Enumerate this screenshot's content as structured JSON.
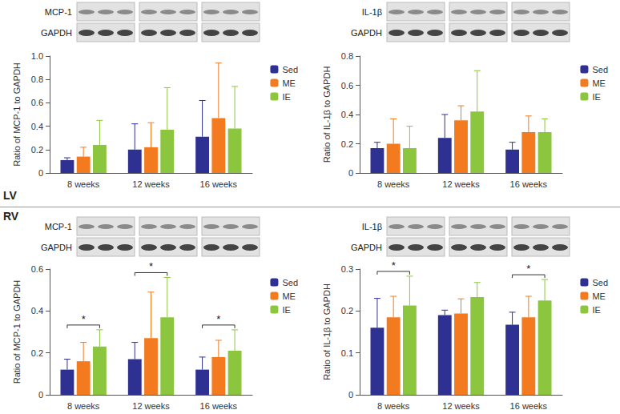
{
  "row_labels": [
    "LV",
    "RV"
  ],
  "chart_data": [
    {
      "type": "bar",
      "blot_labels": [
        "MCP-1",
        "GAPDH"
      ],
      "y_label": "Ratio of MCP-1 to GAPDH",
      "categories": [
        "8 weeks",
        "12 weeks",
        "16 weeks"
      ],
      "series": [
        {
          "name": "Sed",
          "color": "#2e3192",
          "values": [
            0.11,
            0.2,
            0.31
          ],
          "errors": [
            0.02,
            0.22,
            0.31
          ]
        },
        {
          "name": "ME",
          "color": "#f47a20",
          "values": [
            0.14,
            0.22,
            0.47
          ],
          "errors": [
            0.08,
            0.21,
            0.47
          ]
        },
        {
          "name": "IE",
          "color": "#8cc63f",
          "values": [
            0.24,
            0.37,
            0.38
          ],
          "errors": [
            0.21,
            0.36,
            0.36
          ]
        }
      ],
      "ylim": [
        0,
        1
      ],
      "yticks": [
        0,
        0.2,
        0.4,
        0.6,
        0.8,
        {
          "value": 1,
          "label": "1.0"
        }
      ],
      "grid": false,
      "legend": "right",
      "annotations": []
    },
    {
      "type": "bar",
      "blot_labels": [
        "IL-1β",
        "GAPDH"
      ],
      "y_label": "Ratio of IL-1β to GAPDH",
      "categories": [
        "8 weeks",
        "12 weeks",
        "16 weeks"
      ],
      "series": [
        {
          "name": "Sed",
          "color": "#2e3192",
          "values": [
            0.17,
            0.24,
            0.16
          ],
          "errors": [
            0.04,
            0.16,
            0.05
          ]
        },
        {
          "name": "ME",
          "color": "#f47a20",
          "values": [
            0.2,
            0.36,
            0.28
          ],
          "errors": [
            0.17,
            0.1,
            0.11
          ]
        },
        {
          "name": "IE",
          "color": "#8cc63f",
          "values": [
            0.17,
            0.42,
            0.28
          ],
          "errors": [
            0.15,
            0.28,
            0.09
          ]
        }
      ],
      "ylim": [
        0,
        0.8
      ],
      "yticks": [
        0,
        0.2,
        0.4,
        0.6,
        0.8
      ],
      "grid": false,
      "legend": "right",
      "annotations": []
    },
    {
      "type": "bar",
      "blot_labels": [
        "MCP-1",
        "GAPDH"
      ],
      "y_label": "Ratio of MCP-1 to GAPDH",
      "categories": [
        "8 weeks",
        "12 weeks",
        "16 weeks"
      ],
      "series": [
        {
          "name": "Sed",
          "color": "#2e3192",
          "values": [
            0.12,
            0.17,
            0.12
          ],
          "errors": [
            0.05,
            0.08,
            0.06
          ]
        },
        {
          "name": "ME",
          "color": "#f47a20",
          "values": [
            0.16,
            0.27,
            0.18
          ],
          "errors": [
            0.09,
            0.22,
            0.08
          ]
        },
        {
          "name": "IE",
          "color": "#8cc63f",
          "values": [
            0.23,
            0.37,
            0.21
          ],
          "errors": [
            0.08,
            0.19,
            0.1
          ]
        }
      ],
      "ylim": [
        0,
        0.6
      ],
      "yticks": [
        0,
        0.2,
        0.4,
        0.6
      ],
      "grid": false,
      "legend": "right",
      "annotations": [
        {
          "text": "*",
          "category": "8 weeks",
          "from": "Sed",
          "to": "IE"
        },
        {
          "text": "*",
          "category": "12 weeks",
          "from": "Sed",
          "to": "IE"
        },
        {
          "text": "*",
          "category": "16 weeks",
          "from": "Sed",
          "to": "IE"
        }
      ]
    },
    {
      "type": "bar",
      "blot_labels": [
        "IL-1β",
        "GAPDH"
      ],
      "y_label": "Ratio of IL-1β to GAPDH",
      "categories": [
        "8 weeks",
        "12 weeks",
        "16 weeks"
      ],
      "series": [
        {
          "name": "Sed",
          "color": "#2e3192",
          "values": [
            0.16,
            0.19,
            0.167
          ],
          "errors": [
            0.07,
            0.012,
            0.03
          ]
        },
        {
          "name": "ME",
          "color": "#f47a20",
          "values": [
            0.185,
            0.194,
            0.185
          ],
          "errors": [
            0.05,
            0.035,
            0.05
          ]
        },
        {
          "name": "IE",
          "color": "#8cc63f",
          "values": [
            0.213,
            0.233,
            0.225
          ],
          "errors": [
            0.07,
            0.035,
            0.05
          ]
        }
      ],
      "ylim": [
        0,
        0.3
      ],
      "yticks": [
        0,
        0.1,
        0.2,
        0.3
      ],
      "grid": false,
      "legend": "right",
      "annotations": [
        {
          "text": "*",
          "category": "8 weeks",
          "from": "Sed",
          "to": "IE"
        },
        {
          "text": "*",
          "category": "16 weeks",
          "from": "Sed",
          "to": "IE"
        }
      ]
    }
  ]
}
